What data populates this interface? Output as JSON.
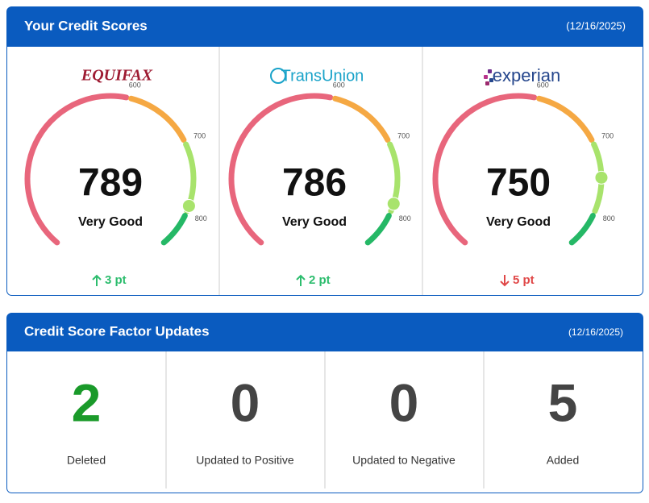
{
  "scores_panel": {
    "title": "Your Credit Scores",
    "date": "(12/16/2025)",
    "gauge_range": [
      300,
      850
    ],
    "gauge_ticks": [
      600,
      700,
      800
    ],
    "segment_colors": [
      "#e8667c",
      "#f5a843",
      "#a8e36c",
      "#25b866"
    ],
    "bureaus": [
      {
        "name": "EQUIFAX",
        "score": 789,
        "rating": "Very Good",
        "change": "3 pt",
        "direction": "up"
      },
      {
        "name": "TransUnion",
        "score": 786,
        "rating": "Very Good",
        "change": "2 pt",
        "direction": "up"
      },
      {
        "name": "experian",
        "score": 750,
        "rating": "Very Good",
        "change": "5 pt",
        "direction": "down"
      }
    ]
  },
  "factors_panel": {
    "title": "Credit Score Factor Updates",
    "date": "(12/16/2025)",
    "items": [
      {
        "count": 2,
        "label": "Deleted",
        "color": "#1a9a2a"
      },
      {
        "count": 0,
        "label": "Updated to Positive",
        "color": "#444444"
      },
      {
        "count": 0,
        "label": "Updated to Negative",
        "color": "#444444"
      },
      {
        "count": 5,
        "label": "Added",
        "color": "#444444"
      }
    ]
  }
}
